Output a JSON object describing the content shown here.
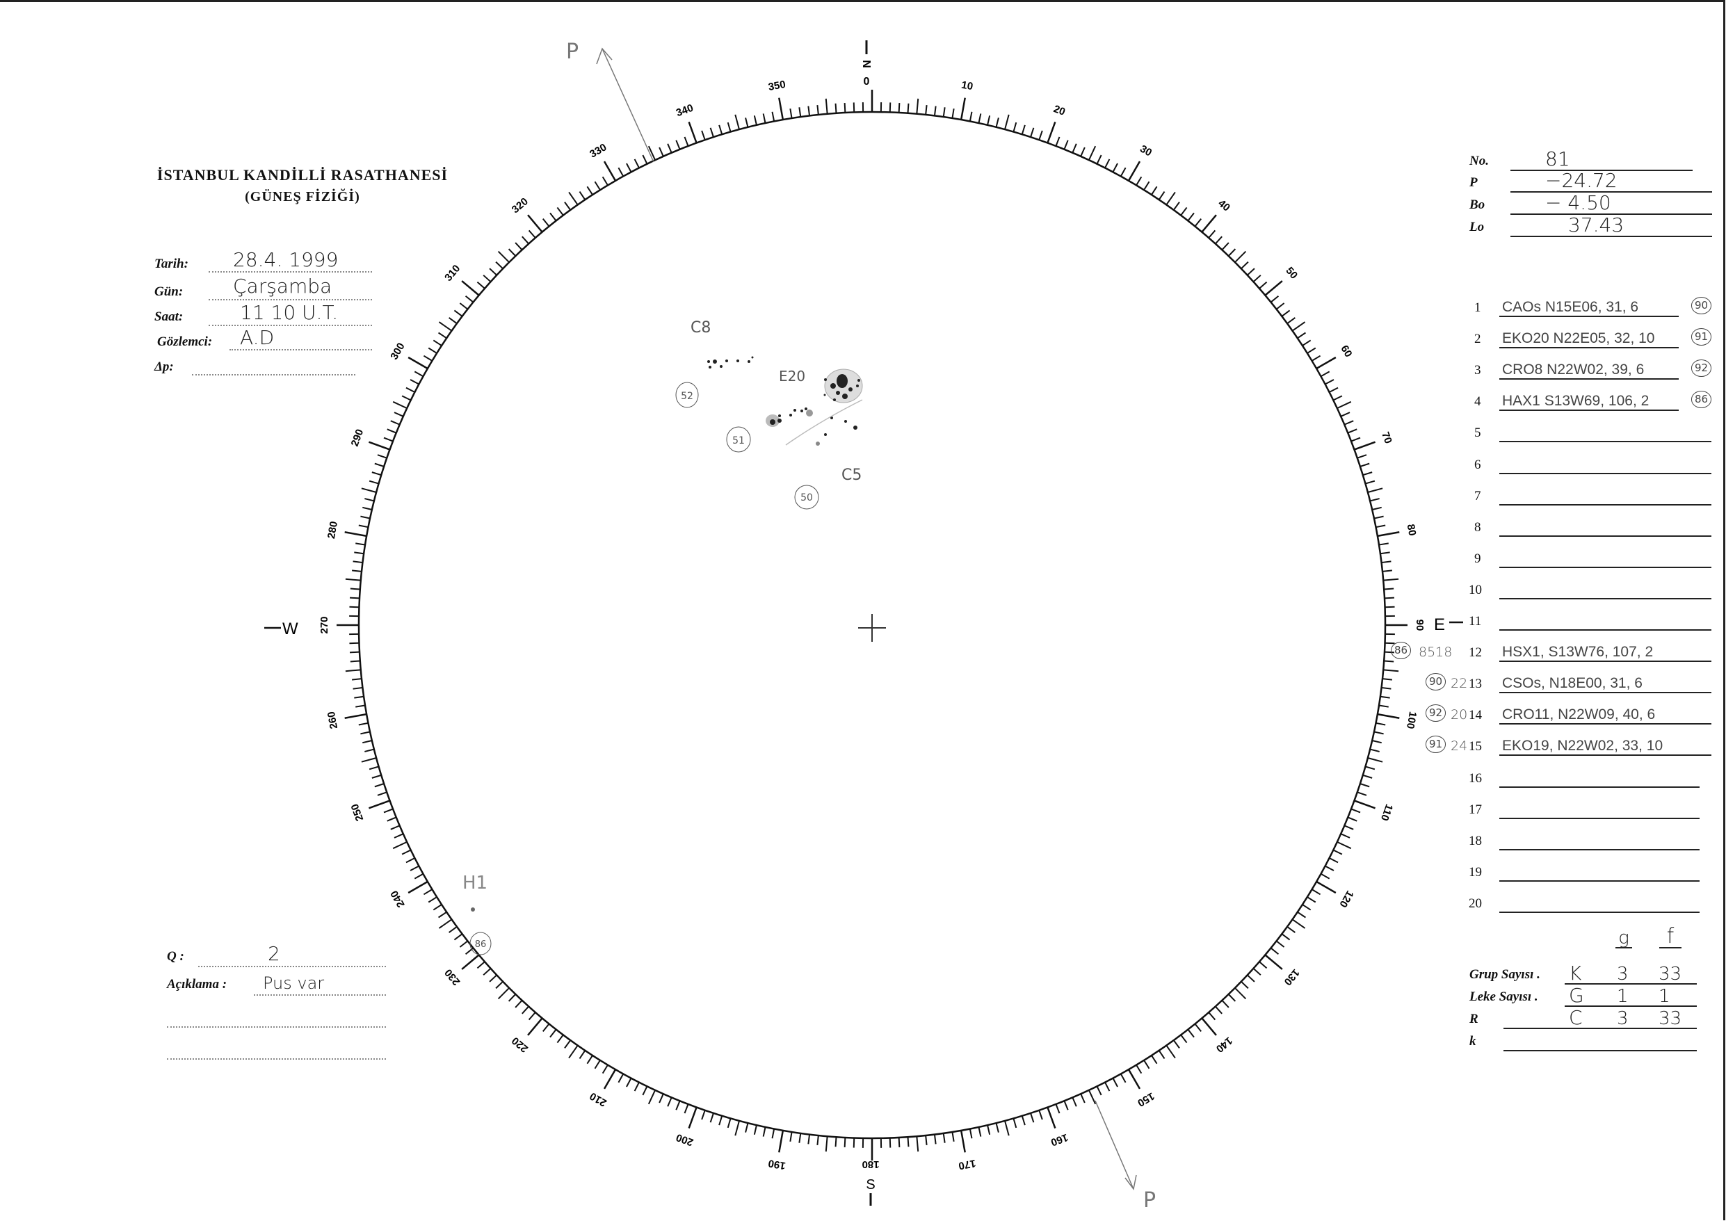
{
  "header": {
    "title": "İSTANBUL KANDİLLİ RASATHANESİ",
    "subtitle": "(GÜNEŞ FİZİĞİ)"
  },
  "observation": {
    "date_label": "Tarih:",
    "date": "28.4. 1999",
    "day_label": "Gün:",
    "day": "Çarşamba",
    "time_label": "Saat:",
    "time": "11 10  U.T.",
    "observer_label": "Gözlemci:",
    "observer": "A.D",
    "dp_label": "Δp:",
    "dp": ""
  },
  "notes": {
    "q_label": "Q :",
    "q": "2",
    "remark_label": "Açıklama :",
    "remark": "Pus var"
  },
  "ephemeris": [
    {
      "label": "No.",
      "value": "81"
    },
    {
      "label": "P",
      "value": "−24.72"
    },
    {
      "label": "Bo",
      "value": "− 4.50"
    },
    {
      "label": "Lo",
      "value": "37.43"
    }
  ],
  "groups": [
    {
      "n": "1",
      "text": "CAOs  N15E06, 31, 6",
      "id": "90",
      "side": ""
    },
    {
      "n": "2",
      "text": "EKO20  N22E05, 32, 10",
      "id": "91",
      "side": ""
    },
    {
      "n": "3",
      "text": "CRO8  N22W02, 39, 6",
      "id": "92",
      "side": ""
    },
    {
      "n": "4",
      "text": "HAX1  S13W69, 106, 2",
      "id": "86",
      "side": ""
    },
    {
      "n": "5",
      "text": ""
    },
    {
      "n": "6",
      "text": ""
    },
    {
      "n": "7",
      "text": ""
    },
    {
      "n": "8",
      "text": ""
    },
    {
      "n": "9",
      "text": ""
    },
    {
      "n": "10",
      "text": ""
    },
    {
      "n": "11",
      "text": ""
    },
    {
      "n": "12",
      "text": "HSX1, S13W76, 107, 2",
      "side_id": "86",
      "side": "8518"
    },
    {
      "n": "13",
      "text": "CSOs, N18E00, 31, 6",
      "side_id": "90",
      "side": "22"
    },
    {
      "n": "14",
      "text": "CRO11, N22W09, 40, 6",
      "side_id": "92",
      "side": "20"
    },
    {
      "n": "15",
      "text": "EKO19, N22W02, 33, 10",
      "side_id": "91",
      "side": "24"
    },
    {
      "n": "16",
      "text": ""
    },
    {
      "n": "17",
      "text": ""
    },
    {
      "n": "18",
      "text": ""
    },
    {
      "n": "19",
      "text": ""
    },
    {
      "n": "20",
      "text": ""
    }
  ],
  "counts": {
    "col_g": "g",
    "col_f": "f",
    "rows": [
      {
        "label": "Grup Sayısı .",
        "letter": "K",
        "g": "3",
        "f": "33"
      },
      {
        "label": "Leke Sayısı .",
        "letter": "G",
        "g": "1",
        "f": "1"
      },
      {
        "label": "R",
        "letter": "C",
        "g": "3",
        "f": "33"
      },
      {
        "label": "k",
        "letter": "",
        "g": "",
        "f": ""
      }
    ]
  },
  "disk": {
    "north": "N",
    "north_zero": "0",
    "south": "S",
    "south_val": "180",
    "east": "E",
    "east_val": "90",
    "west": "W",
    "west_val": "270",
    "scale_labels": [
      "10",
      "20",
      "30",
      "40",
      "50",
      "60",
      "70",
      "80",
      "90",
      "100",
      "110",
      "120",
      "130",
      "140",
      "150",
      "160",
      "170",
      "180",
      "190",
      "200",
      "210",
      "220",
      "230",
      "240",
      "250",
      "260",
      "270",
      "280",
      "290",
      "300",
      "310",
      "320",
      "330",
      "340",
      "350"
    ],
    "axis_p_top": "P",
    "axis_p_bottom": "P",
    "sketch_labels": {
      "c8": "C8",
      "e20": "E20",
      "c5": "C5",
      "h1": "H1",
      "id52": "52",
      "id51": "51",
      "id50": "50",
      "id86": "86"
    }
  }
}
